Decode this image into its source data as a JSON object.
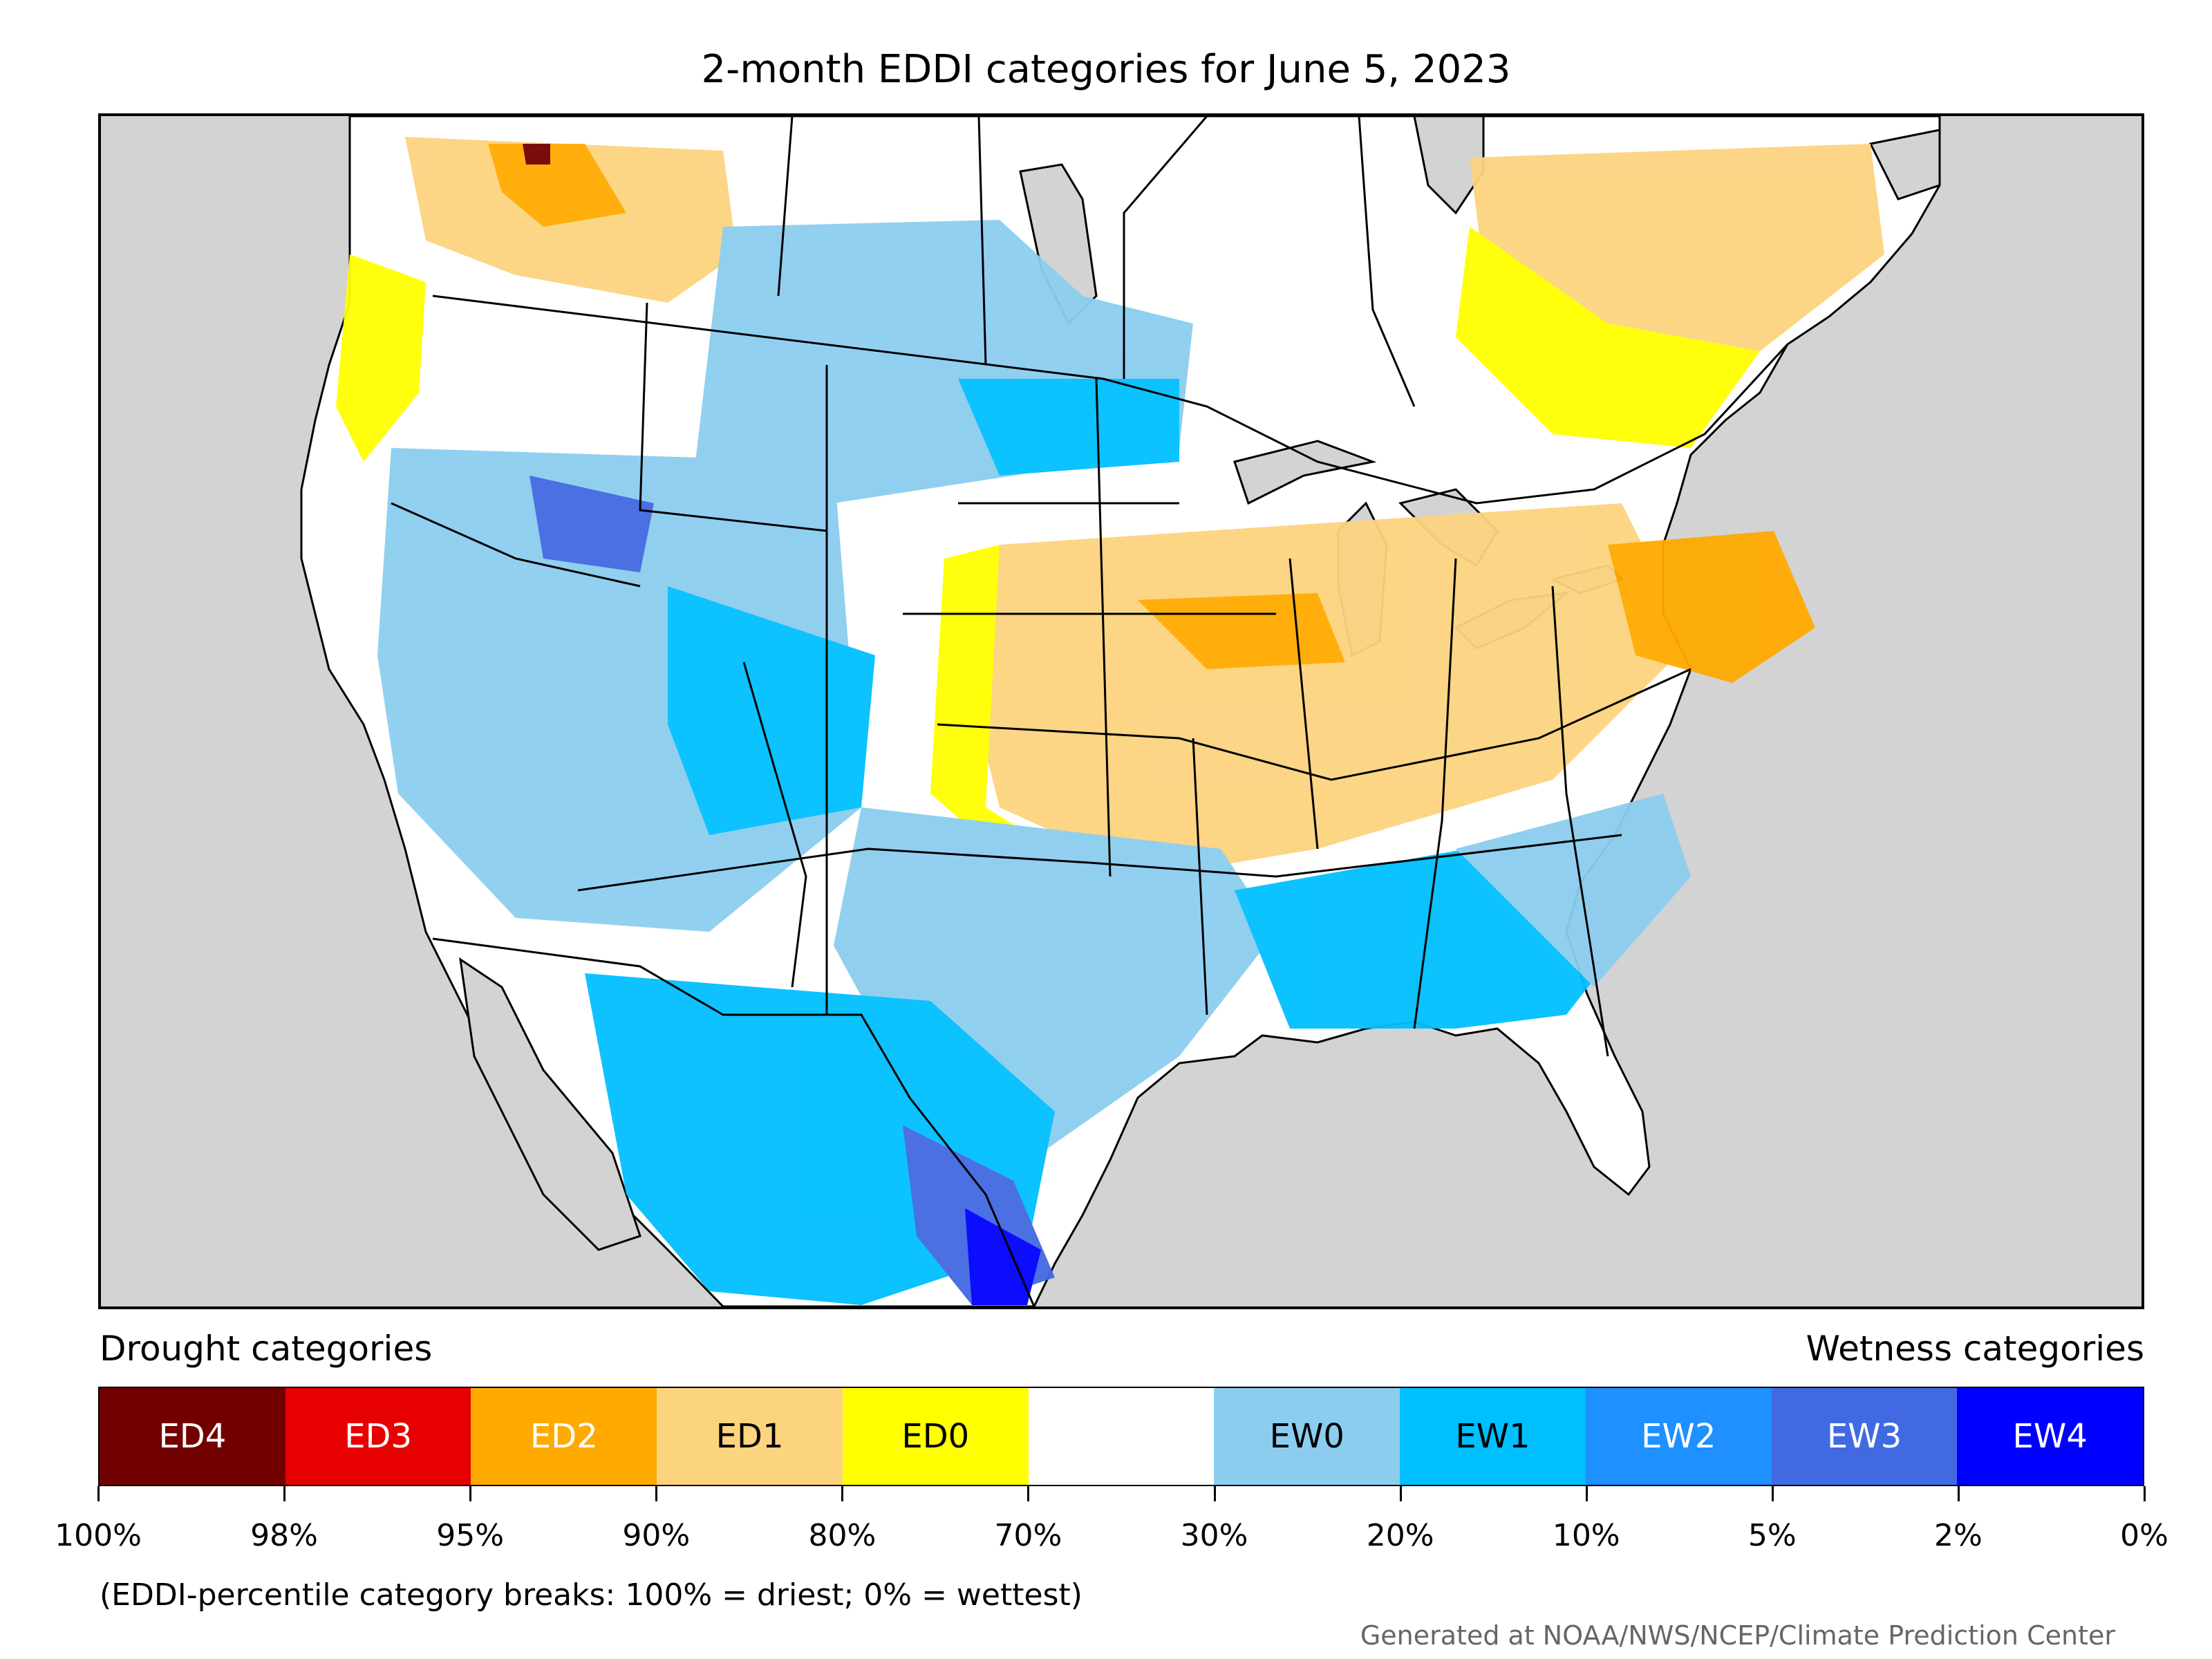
{
  "title": "2-month EDDI categories for June 5, 2023",
  "legend": {
    "drought_heading": "Drought categories",
    "wetness_heading": "Wetness categories",
    "categories": [
      {
        "label": "ED4",
        "color": "#730000",
        "text_color": "#ffffff"
      },
      {
        "label": "ED3",
        "color": "#e60000",
        "text_color": "#ffffff"
      },
      {
        "label": "ED2",
        "color": "#ffaa00",
        "text_color": "#ffffff"
      },
      {
        "label": "ED1",
        "color": "#fcd37f",
        "text_color": "#000000"
      },
      {
        "label": "ED0",
        "color": "#ffff00",
        "text_color": "#000000"
      },
      {
        "label": "",
        "color": "#ffffff",
        "text_color": "#000000"
      },
      {
        "label": "EW0",
        "color": "#8ccdef",
        "text_color": "#000000"
      },
      {
        "label": "EW1",
        "color": "#00bfff",
        "text_color": "#000000"
      },
      {
        "label": "EW2",
        "color": "#1e90ff",
        "text_color": "#ffffff"
      },
      {
        "label": "EW3",
        "color": "#4169e1",
        "text_color": "#ffffff"
      },
      {
        "label": "EW4",
        "color": "#0000ff",
        "text_color": "#ffffff"
      }
    ],
    "tick_labels": [
      "100%",
      "98%",
      "95%",
      "90%",
      "80%",
      "70%",
      "30%",
      "20%",
      "10%",
      "5%",
      "2%",
      "0%"
    ]
  },
  "note": "(EDDI-percentile category breaks: 100% = driest; 0% = wettest)",
  "credit": "Generated at NOAA/NWS/NCEP/Climate Prediction Center",
  "map": {
    "ocean_color": "#d3d3d3",
    "land_color": "#ffffff"
  }
}
